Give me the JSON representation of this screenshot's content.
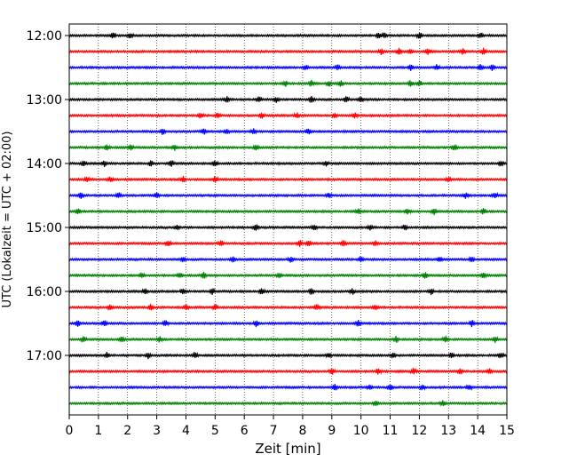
{
  "chart_data": {
    "type": "helicorder",
    "xlabel": "Zeit  [min]",
    "ylabel": "UTC (Lokalzeit = UTC + 02:00)",
    "xlim": [
      0,
      15
    ],
    "x_ticks": [
      0,
      1,
      2,
      3,
      4,
      5,
      6,
      7,
      8,
      9,
      10,
      11,
      12,
      13,
      14,
      15
    ],
    "y_tick_labels": [
      "12:00",
      "13:00",
      "14:00",
      "15:00",
      "16:00",
      "17:00"
    ],
    "grid": "vertical dotted at each minute",
    "trace_interval_minutes": 15,
    "traces": [
      {
        "start": "12:00",
        "color": "#000000",
        "events": [
          1.5,
          2.1,
          10.6,
          10.8,
          12.0,
          14.1
        ]
      },
      {
        "start": "12:15",
        "color": "#ff0000",
        "events": [
          10.7,
          11.3,
          11.7,
          12.3,
          13.5,
          14.2
        ]
      },
      {
        "start": "12:30",
        "color": "#0000ff",
        "events": [
          8.1,
          9.2,
          11.7,
          12.6,
          14.1,
          14.5
        ]
      },
      {
        "start": "12:45",
        "color": "#008000",
        "events": [
          7.4,
          8.3,
          8.9,
          9.3,
          11.7,
          12.0
        ]
      },
      {
        "start": "13:00",
        "color": "#000000",
        "events": [
          5.4,
          6.5,
          7.1,
          8.3,
          9.5,
          10.0
        ]
      },
      {
        "start": "13:15",
        "color": "#ff0000",
        "events": [
          4.5,
          5.1,
          6.6,
          7.8,
          9.1,
          9.8
        ]
      },
      {
        "start": "13:30",
        "color": "#0000ff",
        "events": [
          3.2,
          4.6,
          5.4,
          6.3,
          8.2
        ]
      },
      {
        "start": "13:45",
        "color": "#008000",
        "events": [
          1.3,
          2.1,
          3.6,
          6.4,
          13.2
        ]
      },
      {
        "start": "14:00",
        "color": "#000000",
        "events": [
          0.5,
          1.2,
          2.8,
          3.5,
          5.0,
          8.8,
          14.8
        ]
      },
      {
        "start": "14:15",
        "color": "#ff0000",
        "events": [
          0.6,
          1.4,
          3.9,
          5.0,
          13.0
        ]
      },
      {
        "start": "14:30",
        "color": "#0000ff",
        "events": [
          0.4,
          1.7,
          3.0,
          8.9,
          13.6,
          14.6
        ]
      },
      {
        "start": "14:45",
        "color": "#008000",
        "events": [
          0.3,
          9.9,
          11.6,
          12.5,
          14.2
        ]
      },
      {
        "start": "15:00",
        "color": "#000000",
        "events": [
          3.7,
          6.4,
          8.4,
          10.3,
          11.5
        ]
      },
      {
        "start": "15:15",
        "color": "#ff0000",
        "events": [
          3.4,
          5.2,
          7.9,
          8.2,
          9.4,
          10.5
        ]
      },
      {
        "start": "15:30",
        "color": "#0000ff",
        "events": [
          3.9,
          5.6,
          7.6,
          10.0,
          12.7,
          13.8
        ]
      },
      {
        "start": "15:45",
        "color": "#008000",
        "events": [
          2.5,
          3.8,
          4.6,
          7.2,
          12.2,
          14.2
        ]
      },
      {
        "start": "16:00",
        "color": "#000000",
        "events": [
          2.6,
          3.9,
          4.9,
          6.6,
          8.3,
          9.7,
          12.4
        ]
      },
      {
        "start": "16:15",
        "color": "#ff0000",
        "events": [
          1.4,
          2.8,
          4.0,
          5.0,
          8.5,
          10.5
        ]
      },
      {
        "start": "16:30",
        "color": "#0000ff",
        "events": [
          0.3,
          1.2,
          3.3,
          6.4,
          9.9,
          13.8
        ]
      },
      {
        "start": "16:45",
        "color": "#008000",
        "events": [
          0.5,
          1.8,
          3.1,
          11.2,
          12.9,
          14.6
        ]
      },
      {
        "start": "17:00",
        "color": "#000000",
        "events": [
          1.3,
          2.7,
          4.3,
          8.9,
          11.1,
          13.1,
          14.8
        ]
      },
      {
        "start": "17:15",
        "color": "#ff0000",
        "events": [
          9.0,
          10.6,
          11.8,
          13.4,
          14.4
        ]
      },
      {
        "start": "17:30",
        "color": "#0000ff",
        "events": [
          9.1,
          10.3,
          11.0,
          12.1,
          13.7
        ]
      },
      {
        "start": "17:45",
        "color": "#008000",
        "events": [
          10.5,
          12.8
        ]
      }
    ]
  }
}
